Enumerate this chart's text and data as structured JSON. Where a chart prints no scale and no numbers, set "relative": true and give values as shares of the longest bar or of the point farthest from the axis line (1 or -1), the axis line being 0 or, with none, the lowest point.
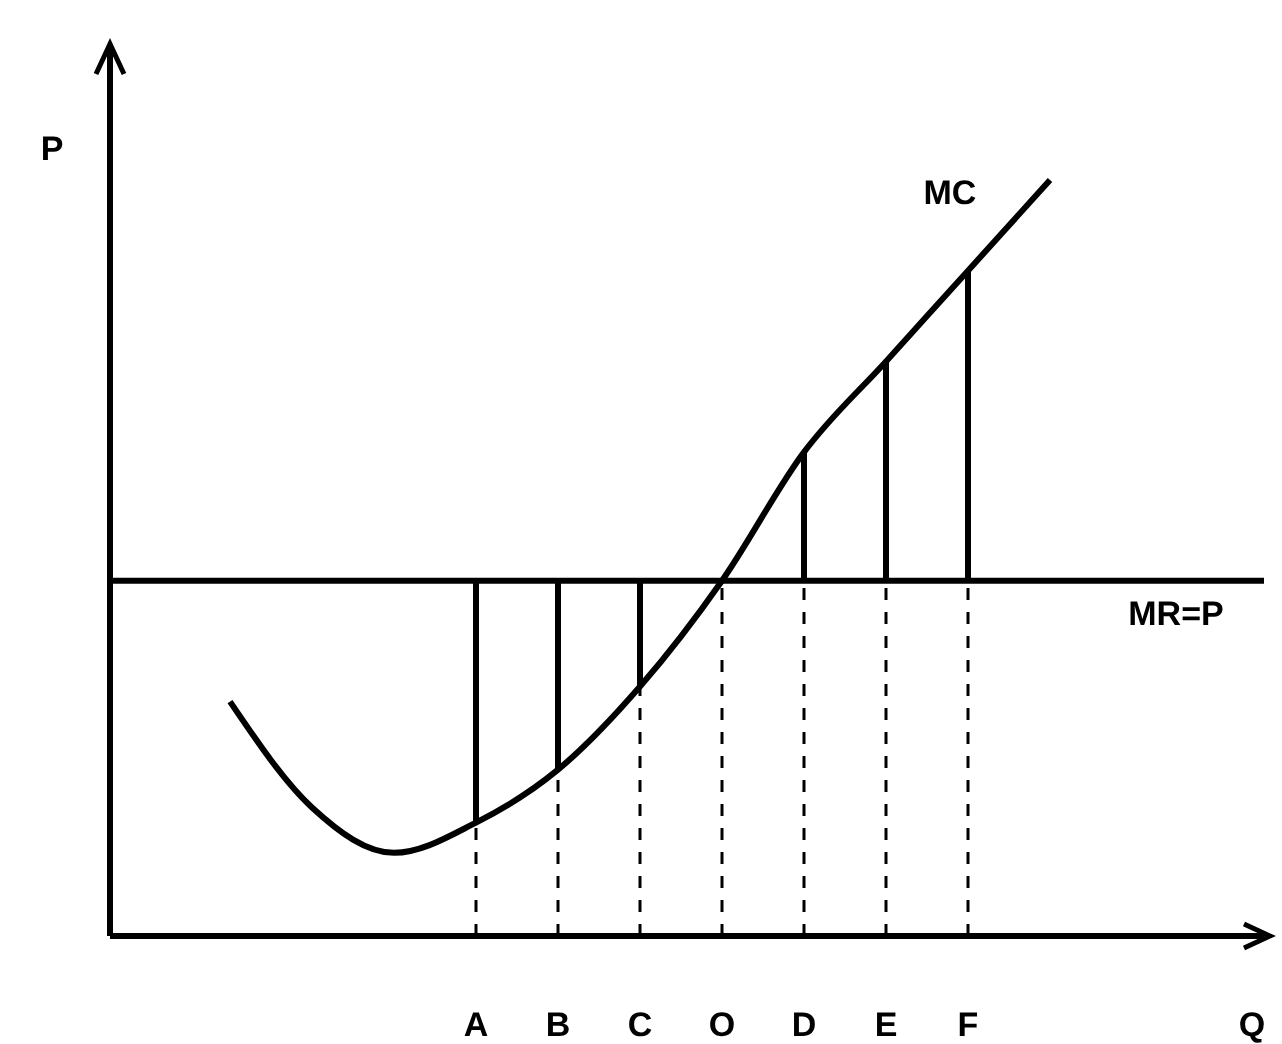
{
  "chart_data": {
    "type": "line",
    "relative": true,
    "xlabel": "Q",
    "ylabel": "P",
    "marker": "none",
    "categories": [
      null,
      null,
      null,
      "A",
      "B",
      "C",
      "O",
      "D",
      "E",
      "F",
      null
    ],
    "series": [
      {
        "name": "MC",
        "color": "#000000",
        "values": [
          0.31,
          0.17,
          0.11,
          0.15,
          0.22,
          0.33,
          0.47,
          0.64,
          0.76,
          0.88,
          1
        ]
      },
      {
        "color": "#000000",
        "x": [
          "A",
          "A"
        ],
        "values": [
          0.15,
          0.47
        ]
      },
      {
        "color": "#000000",
        "x": [
          "B",
          "B"
        ],
        "values": [
          0.22,
          0.47
        ]
      },
      {
        "color": "#000000",
        "x": [
          "C",
          "C"
        ],
        "values": [
          0.33,
          0.47
        ]
      },
      {
        "color": "#000000",
        "x": [
          "D",
          "D"
        ],
        "values": [
          0.47,
          0.64
        ]
      },
      {
        "color": "#000000",
        "x": [
          "E",
          "E"
        ],
        "values": [
          0.47,
          0.76
        ]
      },
      {
        "color": "#000000",
        "x": [
          "F",
          "F"
        ],
        "values": [
          0.47,
          0.88
        ]
      },
      {
        "color": "#000000",
        "line_style": "dashed",
        "x": [
          "A",
          "A"
        ],
        "values": [
          0,
          0.15
        ]
      },
      {
        "color": "#000000",
        "line_style": "dashed",
        "x": [
          "B",
          "B"
        ],
        "values": [
          0,
          0.22
        ]
      },
      {
        "color": "#000000",
        "line_style": "dashed",
        "x": [
          "C",
          "C"
        ],
        "values": [
          0,
          0.33
        ]
      },
      {
        "color": "#000000",
        "line_style": "dashed",
        "x": [
          "O",
          "O"
        ],
        "values": [
          0,
          0.47
        ]
      },
      {
        "color": "#000000",
        "line_style": "dashed",
        "x": [
          "D",
          "D"
        ],
        "values": [
          0,
          0.47
        ]
      },
      {
        "color": "#000000",
        "line_style": "dashed",
        "x": [
          "E",
          "E"
        ],
        "values": [
          0,
          0.47
        ]
      },
      {
        "color": "#000000",
        "line_style": "dashed",
        "x": [
          "F",
          "F"
        ],
        "values": [
          0,
          0.47
        ]
      }
    ],
    "ref_lines": [
      {
        "axis": "y",
        "value": 0.47,
        "label": "MR=P",
        "color": "#000000"
      }
    ]
  }
}
